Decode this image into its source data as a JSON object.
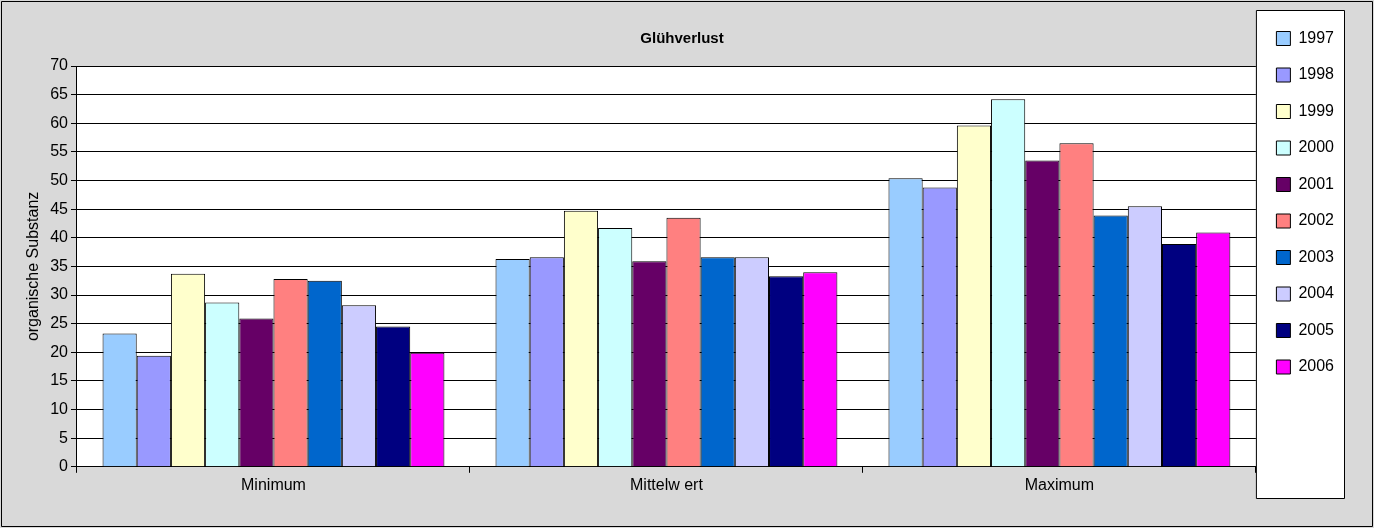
{
  "chart_data": {
    "type": "bar",
    "title": "Glühverlust",
    "ylabel": "organische Substanz",
    "categories": [
      "Minimum",
      "Mittelw ert",
      "Maximum"
    ],
    "series": [
      {
        "name": "1997",
        "color": "#99ccff",
        "values": [
          23.3,
          36.3,
          50.4
        ]
      },
      {
        "name": "1998",
        "color": "#9999ff",
        "values": [
          19.4,
          36.6,
          48.8
        ]
      },
      {
        "name": "1999",
        "color": "#ffffcc",
        "values": [
          33.7,
          44.7,
          59.6
        ]
      },
      {
        "name": "2000",
        "color": "#ccffff",
        "values": [
          28.7,
          41.7,
          64.2
        ]
      },
      {
        "name": "2001",
        "color": "#660066",
        "values": [
          25.9,
          35.9,
          53.5
        ]
      },
      {
        "name": "2002",
        "color": "#ff8080",
        "values": [
          32.8,
          43.5,
          56.5
        ]
      },
      {
        "name": "2003",
        "color": "#0066cc",
        "values": [
          32.5,
          36.6,
          43.9
        ]
      },
      {
        "name": "2004",
        "color": "#ccccff",
        "values": [
          28.2,
          36.6,
          45.5
        ]
      },
      {
        "name": "2005",
        "color": "#000080",
        "values": [
          24.5,
          33.3,
          38.9
        ]
      },
      {
        "name": "2006",
        "color": "#ff00ff",
        "values": [
          19.9,
          34.0,
          40.9
        ]
      }
    ],
    "ylim": [
      0,
      70
    ],
    "yticks": [
      0,
      5,
      10,
      15,
      20,
      25,
      30,
      35,
      40,
      45,
      50,
      55,
      60,
      65,
      70
    ],
    "grid": "y",
    "legend": "right"
  }
}
